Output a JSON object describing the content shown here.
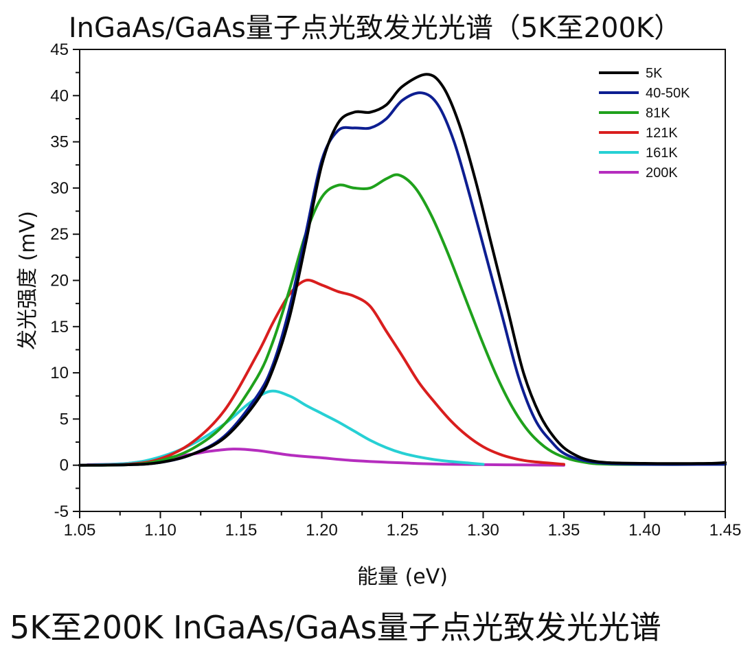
{
  "title": "InGaAs/GaAs量子点光致发光光谱（5K至200K）",
  "caption": "5K至200K InGaAs/GaAs量子点光致发光光谱",
  "chart_data": {
    "type": "line",
    "title": "InGaAs/GaAs量子点光致发光光谱（5K至200K）",
    "xlabel": "能量 (eV)",
    "ylabel": "发光强度 (mV)",
    "xlim": [
      1.05,
      1.45
    ],
    "ylim": [
      -5,
      45
    ],
    "xticks": [
      1.05,
      1.1,
      1.15,
      1.2,
      1.25,
      1.3,
      1.35,
      1.4,
      1.45
    ],
    "xtick_labels": [
      "1.05",
      "1.10",
      "1.15",
      "1.20",
      "1.25",
      "1.30",
      "1.35",
      "1.40",
      "1.45"
    ],
    "yticks": [
      -5,
      0,
      5,
      10,
      15,
      20,
      25,
      30,
      35,
      40,
      45
    ],
    "ytick_labels": [
      "-5",
      "0",
      "5",
      "10",
      "15",
      "20",
      "25",
      "30",
      "35",
      "40",
      "45"
    ],
    "grid": false,
    "legend_position": "top-right",
    "series": [
      {
        "name": "5K",
        "color": "#000000",
        "points": [
          [
            1.05,
            0
          ],
          [
            1.08,
            0.05
          ],
          [
            1.1,
            0.3
          ],
          [
            1.12,
            1.2
          ],
          [
            1.14,
            3.0
          ],
          [
            1.16,
            7.0
          ],
          [
            1.17,
            10.5
          ],
          [
            1.18,
            16.0
          ],
          [
            1.19,
            24.0
          ],
          [
            1.2,
            32.5
          ],
          [
            1.21,
            37.0
          ],
          [
            1.22,
            38.2
          ],
          [
            1.23,
            38.2
          ],
          [
            1.24,
            39.0
          ],
          [
            1.25,
            41.0
          ],
          [
            1.265,
            42.3
          ],
          [
            1.275,
            41.0
          ],
          [
            1.285,
            37.0
          ],
          [
            1.295,
            31.0
          ],
          [
            1.305,
            24.0
          ],
          [
            1.315,
            17.0
          ],
          [
            1.325,
            10.0
          ],
          [
            1.335,
            5.5
          ],
          [
            1.345,
            2.8
          ],
          [
            1.355,
            1.3
          ],
          [
            1.37,
            0.4
          ],
          [
            1.4,
            0.2
          ],
          [
            1.44,
            0.2
          ],
          [
            1.45,
            0.3
          ]
        ]
      },
      {
        "name": "40-50K",
        "color": "#0d1e91",
        "points": [
          [
            1.05,
            0
          ],
          [
            1.08,
            0.05
          ],
          [
            1.1,
            0.3
          ],
          [
            1.12,
            1.2
          ],
          [
            1.14,
            3.2
          ],
          [
            1.16,
            7.5
          ],
          [
            1.17,
            11.0
          ],
          [
            1.18,
            17.0
          ],
          [
            1.19,
            25.0
          ],
          [
            1.2,
            33.0
          ],
          [
            1.21,
            36.2
          ],
          [
            1.22,
            36.5
          ],
          [
            1.23,
            36.5
          ],
          [
            1.24,
            37.5
          ],
          [
            1.25,
            39.5
          ],
          [
            1.262,
            40.3
          ],
          [
            1.272,
            39.0
          ],
          [
            1.282,
            35.0
          ],
          [
            1.292,
            29.0
          ],
          [
            1.302,
            22.5
          ],
          [
            1.312,
            16.0
          ],
          [
            1.322,
            9.5
          ],
          [
            1.332,
            5.0
          ],
          [
            1.342,
            2.6
          ],
          [
            1.352,
            1.1
          ],
          [
            1.37,
            0.3
          ],
          [
            1.4,
            0.1
          ],
          [
            1.45,
            0.1
          ]
        ]
      },
      {
        "name": "81K",
        "color": "#1fa11c",
        "points": [
          [
            1.05,
            0
          ],
          [
            1.08,
            0.05
          ],
          [
            1.1,
            0.5
          ],
          [
            1.12,
            1.8
          ],
          [
            1.14,
            4.5
          ],
          [
            1.16,
            9.5
          ],
          [
            1.17,
            13.5
          ],
          [
            1.18,
            19.0
          ],
          [
            1.19,
            25.0
          ],
          [
            1.2,
            29.0
          ],
          [
            1.21,
            30.3
          ],
          [
            1.22,
            30.0
          ],
          [
            1.23,
            30.0
          ],
          [
            1.24,
            31.0
          ],
          [
            1.248,
            31.4
          ],
          [
            1.258,
            30.0
          ],
          [
            1.268,
            27.0
          ],
          [
            1.278,
            23.0
          ],
          [
            1.288,
            18.5
          ],
          [
            1.298,
            14.0
          ],
          [
            1.308,
            9.8
          ],
          [
            1.318,
            6.3
          ],
          [
            1.328,
            3.7
          ],
          [
            1.338,
            2.0
          ],
          [
            1.348,
            1.0
          ],
          [
            1.36,
            0.4
          ],
          [
            1.38,
            0.1
          ],
          [
            1.45,
            0.1
          ]
        ]
      },
      {
        "name": "121K",
        "color": "#d91e1e",
        "points": [
          [
            1.05,
            0
          ],
          [
            1.08,
            0.1
          ],
          [
            1.1,
            0.7
          ],
          [
            1.12,
            2.5
          ],
          [
            1.14,
            6.0
          ],
          [
            1.16,
            12.0
          ],
          [
            1.17,
            15.5
          ],
          [
            1.18,
            18.5
          ],
          [
            1.19,
            20.0
          ],
          [
            1.2,
            19.5
          ],
          [
            1.21,
            18.8
          ],
          [
            1.22,
            18.3
          ],
          [
            1.23,
            17.2
          ],
          [
            1.24,
            14.5
          ],
          [
            1.25,
            11.8
          ],
          [
            1.26,
            9.0
          ],
          [
            1.27,
            6.8
          ],
          [
            1.28,
            4.8
          ],
          [
            1.29,
            3.2
          ],
          [
            1.3,
            2.0
          ],
          [
            1.31,
            1.2
          ],
          [
            1.32,
            0.7
          ],
          [
            1.33,
            0.4
          ],
          [
            1.35,
            0.1
          ]
        ]
      },
      {
        "name": "161K",
        "color": "#27d0d4",
        "points": [
          [
            1.05,
            0
          ],
          [
            1.08,
            0.2
          ],
          [
            1.1,
            0.9
          ],
          [
            1.12,
            2.3
          ],
          [
            1.14,
            4.5
          ],
          [
            1.155,
            6.7
          ],
          [
            1.168,
            8.0
          ],
          [
            1.18,
            7.5
          ],
          [
            1.19,
            6.5
          ],
          [
            1.2,
            5.6
          ],
          [
            1.21,
            4.7
          ],
          [
            1.22,
            3.7
          ],
          [
            1.23,
            2.7
          ],
          [
            1.24,
            1.9
          ],
          [
            1.25,
            1.3
          ],
          [
            1.26,
            0.9
          ],
          [
            1.27,
            0.6
          ],
          [
            1.28,
            0.4
          ],
          [
            1.29,
            0.25
          ],
          [
            1.3,
            0.1
          ]
        ]
      },
      {
        "name": "200K",
        "color": "#b52dbe",
        "points": [
          [
            1.055,
            0.05
          ],
          [
            1.08,
            0.2
          ],
          [
            1.1,
            0.7
          ],
          [
            1.12,
            1.2
          ],
          [
            1.13,
            1.5
          ],
          [
            1.145,
            1.75
          ],
          [
            1.16,
            1.6
          ],
          [
            1.18,
            1.1
          ],
          [
            1.2,
            0.8
          ],
          [
            1.22,
            0.5
          ],
          [
            1.25,
            0.25
          ],
          [
            1.28,
            0.1
          ],
          [
            1.35,
            0.0
          ]
        ]
      }
    ]
  }
}
